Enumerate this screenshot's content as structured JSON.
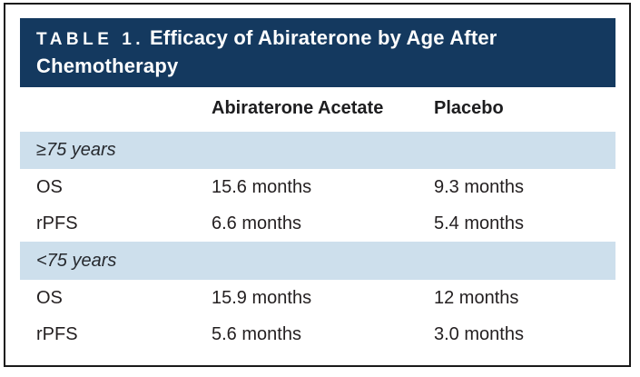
{
  "table": {
    "label": "TABLE 1.",
    "title": "Efficacy of Abiraterone by Age After Chemotherapy",
    "columns": {
      "metric": "",
      "abiraterone": "Abiraterone Acetate",
      "placebo": "Placebo"
    },
    "groups": [
      {
        "header": "≥75 years",
        "rows": [
          {
            "metric": "OS",
            "abiraterone": "15.6 months",
            "placebo": "9.3 months"
          },
          {
            "metric": "rPFS",
            "abiraterone": "6.6 months",
            "placebo": "5.4 months"
          }
        ]
      },
      {
        "header": "<75 years",
        "rows": [
          {
            "metric": "OS",
            "abiraterone": "15.9 months",
            "placebo": "12 months"
          },
          {
            "metric": "rPFS",
            "abiraterone": "5.6 months",
            "placebo": "3.0 months"
          }
        ]
      }
    ],
    "colors": {
      "title_bar_bg": "#14395f",
      "title_text": "#ffffff",
      "group_band_bg": "#cddfec",
      "body_text": "#231f20",
      "frame_border": "#1a1a1a"
    }
  },
  "chart_data": {
    "type": "table",
    "title": "TABLE 1. Efficacy of Abiraterone by Age After Chemotherapy",
    "columns": [
      "",
      "Abiraterone Acetate",
      "Placebo"
    ],
    "rows": [
      [
        "≥75 years",
        "",
        ""
      ],
      [
        "OS",
        "15.6 months",
        "9.3 months"
      ],
      [
        "rPFS",
        "6.6 months",
        "5.4 months"
      ],
      [
        "<75 years",
        "",
        ""
      ],
      [
        "OS",
        "15.9 months",
        "12 months"
      ],
      [
        "rPFS",
        "5.6 months",
        "3.0 months"
      ]
    ]
  }
}
